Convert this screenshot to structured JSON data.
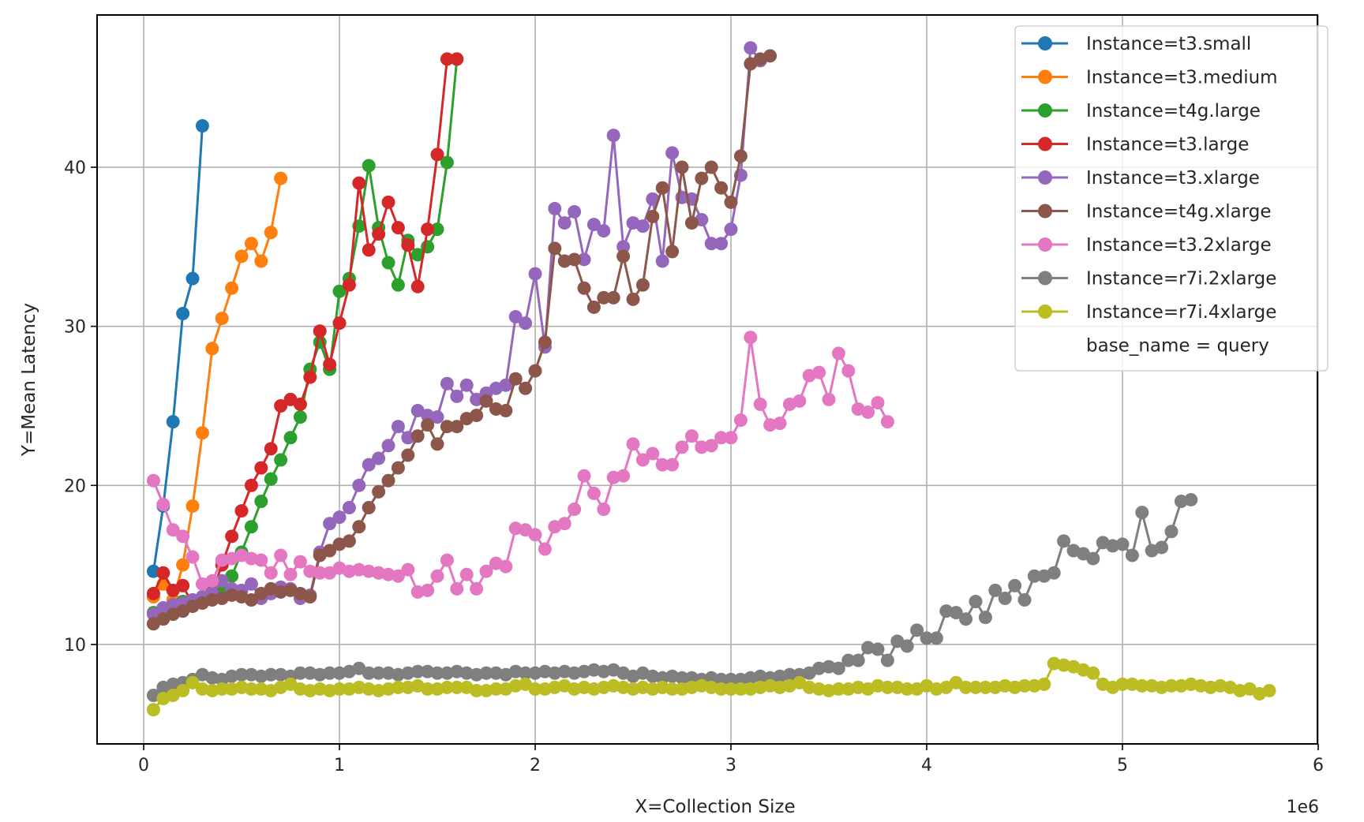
{
  "figure": {
    "xlabel": "X=Collection Size",
    "ylabel": "Y=Mean Latency",
    "x_offset_text": "1e6",
    "legend_title_row": "base_name = query"
  },
  "chart_data": {
    "type": "line",
    "title": "",
    "xlabel": "X=Collection Size",
    "ylabel": "Y=Mean Latency",
    "x_scale_note": "x values in units of 1e6",
    "xlim": [
      -0.238,
      5.996
    ],
    "ylim": [
      3.75,
      49.57
    ],
    "xticks": [
      0,
      1,
      2,
      3,
      4,
      5,
      6
    ],
    "xtick_labels": [
      "0",
      "1",
      "2",
      "3",
      "4",
      "5",
      "6"
    ],
    "yticks": [
      10,
      20,
      30,
      40
    ],
    "ytick_labels": [
      "10",
      "20",
      "30",
      "40"
    ],
    "grid": true,
    "legend_position": "upper right",
    "legend_extra": "base_name = query",
    "series": [
      {
        "name": "Instance=t3.small",
        "color": "#1f77b4",
        "x0": 0.05,
        "dx": 0.05,
        "values": [
          14.6,
          18.7,
          24.0,
          30.8,
          33.0,
          42.6
        ]
      },
      {
        "name": "Instance=t3.medium",
        "color": "#ff7f0e",
        "x0": 0.05,
        "dx": 0.05,
        "values": [
          13.0,
          13.8,
          12.8,
          15.0,
          18.7,
          23.3,
          28.6,
          30.5,
          32.4,
          34.4,
          35.2,
          34.1,
          35.9,
          39.3
        ]
      },
      {
        "name": "Instance=t4g.large",
        "color": "#2ca02c",
        "x0": 0.05,
        "dx": 0.05,
        "values": [
          12.0,
          12.3,
          12.5,
          12.7,
          12.8,
          13.0,
          13.3,
          13.5,
          14.3,
          15.8,
          17.4,
          19.0,
          20.4,
          21.6,
          23.0,
          24.3,
          27.3,
          29.0,
          27.3,
          32.2,
          33.0,
          36.3,
          40.1,
          36.2,
          34.0,
          32.6,
          35.4,
          34.5,
          35.0,
          36.1,
          40.3,
          46.8
        ]
      },
      {
        "name": "Instance=t3.large",
        "color": "#d62728",
        "x0": 0.05,
        "dx": 0.05,
        "values": [
          13.2,
          14.5,
          13.4,
          13.7,
          12.5,
          12.8,
          13.3,
          15.0,
          16.8,
          18.4,
          20.0,
          21.1,
          22.3,
          25.0,
          25.4,
          25.1,
          26.8,
          29.7,
          27.6,
          30.2,
          32.6,
          39.0,
          34.8,
          35.8,
          37.8,
          36.2,
          35.1,
          32.5,
          36.1,
          40.8,
          46.8,
          46.8
        ]
      },
      {
        "name": "Instance=t3.xlarge",
        "color": "#9467bd",
        "x0": 0.05,
        "dx": 0.05,
        "values": [
          11.9,
          12.3,
          12.5,
          12.6,
          12.8,
          13.0,
          13.2,
          14.0,
          13.5,
          13.4,
          13.8,
          12.9,
          13.2,
          13.6,
          13.5,
          12.9,
          13.1,
          15.8,
          17.6,
          18.0,
          18.6,
          20.0,
          21.3,
          21.7,
          22.5,
          23.7,
          23.0,
          24.7,
          24.4,
          24.3,
          26.4,
          25.6,
          26.3,
          25.4,
          25.8,
          26.1,
          26.3,
          30.6,
          30.2,
          33.3,
          28.7,
          37.4,
          36.5,
          37.2,
          34.2,
          36.4,
          36.0,
          42.0,
          35.0,
          36.5,
          36.3,
          38.0,
          34.1,
          40.9,
          38.1,
          38.0,
          36.7,
          35.2,
          35.2,
          36.1,
          39.5,
          47.5,
          46.7
        ]
      },
      {
        "name": "Instance=t4g.xlarge",
        "color": "#8c564b",
        "x0": 0.05,
        "dx": 0.05,
        "values": [
          11.3,
          11.6,
          11.9,
          12.1,
          12.4,
          12.6,
          12.8,
          12.9,
          13.1,
          13.0,
          12.8,
          13.2,
          13.5,
          13.3,
          13.4,
          13.2,
          13.0,
          15.6,
          15.9,
          16.3,
          16.5,
          17.4,
          18.6,
          19.6,
          20.3,
          21.1,
          21.9,
          23.1,
          23.8,
          22.6,
          23.7,
          23.7,
          24.2,
          24.4,
          25.3,
          24.8,
          24.7,
          26.7,
          26.1,
          27.2,
          29.0,
          34.9,
          34.1,
          34.2,
          32.4,
          31.2,
          31.8,
          31.8,
          34.4,
          31.7,
          32.6,
          36.9,
          38.7,
          34.7,
          40.0,
          36.5,
          39.3,
          40.0,
          38.7,
          37.8,
          40.7,
          46.5,
          46.8,
          47.0
        ]
      },
      {
        "name": "Instance=t3.2xlarge",
        "color": "#e377c2",
        "x0": 0.05,
        "dx": 0.05,
        "values": [
          20.3,
          18.8,
          17.2,
          16.8,
          15.5,
          13.8,
          14.0,
          15.3,
          15.4,
          15.6,
          15.4,
          15.3,
          14.5,
          15.6,
          14.4,
          15.2,
          14.6,
          14.5,
          14.5,
          14.8,
          14.6,
          14.7,
          14.6,
          14.5,
          14.4,
          14.3,
          14.7,
          13.3,
          13.4,
          14.3,
          15.3,
          13.5,
          14.4,
          13.5,
          14.6,
          15.1,
          14.9,
          17.3,
          17.2,
          16.9,
          16.0,
          17.4,
          17.6,
          18.5,
          20.6,
          19.5,
          18.5,
          20.5,
          20.6,
          22.6,
          21.6,
          22.0,
          21.3,
          21.3,
          22.4,
          23.1,
          22.4,
          22.5,
          23.0,
          23.0,
          24.1,
          29.3,
          25.1,
          23.8,
          23.9,
          25.1,
          25.3,
          26.9,
          27.1,
          25.4,
          28.3,
          27.2,
          24.8,
          24.6,
          25.2,
          24.0
        ]
      },
      {
        "name": "Instance=r7i.2xlarge",
        "color": "#7f7f7f",
        "x0": 0.05,
        "dx": 0.05,
        "values": [
          6.8,
          7.3,
          7.5,
          7.6,
          7.8,
          8.1,
          7.9,
          7.8,
          8.0,
          8.1,
          8.1,
          8.0,
          8.1,
          8.1,
          8.0,
          8.2,
          8.2,
          8.1,
          8.2,
          8.2,
          8.3,
          8.5,
          8.2,
          8.2,
          8.2,
          8.1,
          8.2,
          8.3,
          8.3,
          8.2,
          8.2,
          8.3,
          8.2,
          8.1,
          8.2,
          8.2,
          8.1,
          8.3,
          8.2,
          8.2,
          8.3,
          8.2,
          8.3,
          8.2,
          8.3,
          8.4,
          8.3,
          8.4,
          8.2,
          8.0,
          8.2,
          8.0,
          7.9,
          8.0,
          7.9,
          7.9,
          7.8,
          7.9,
          7.8,
          7.8,
          7.8,
          7.9,
          8.0,
          7.9,
          8.0,
          8.1,
          8.1,
          8.2,
          8.5,
          8.6,
          8.5,
          9.0,
          9.0,
          9.8,
          9.7,
          9.0,
          10.2,
          9.9,
          10.9,
          10.4,
          10.4,
          12.1,
          12.0,
          11.6,
          12.7,
          11.7,
          13.4,
          12.9,
          13.7,
          12.8,
          14.3,
          14.3,
          14.5,
          16.5,
          15.9,
          15.7,
          15.4,
          16.4,
          16.2,
          16.3,
          15.6,
          18.3,
          15.9,
          16.1,
          17.1,
          19.0,
          19.1
        ]
      },
      {
        "name": "Instance=r7i.4xlarge",
        "color": "#bcbd22",
        "x0": 0.05,
        "dx": 0.05,
        "values": [
          5.9,
          6.6,
          6.8,
          7.1,
          7.6,
          7.2,
          7.1,
          7.2,
          7.2,
          7.3,
          7.2,
          7.2,
          7.1,
          7.3,
          7.5,
          7.2,
          7.1,
          7.2,
          7.1,
          7.2,
          7.2,
          7.3,
          7.2,
          7.1,
          7.2,
          7.3,
          7.3,
          7.4,
          7.2,
          7.2,
          7.3,
          7.3,
          7.3,
          7.1,
          7.1,
          7.2,
          7.2,
          7.4,
          7.5,
          7.2,
          7.2,
          7.3,
          7.4,
          7.2,
          7.3,
          7.2,
          7.3,
          7.4,
          7.3,
          7.2,
          7.3,
          7.2,
          7.3,
          7.2,
          7.2,
          7.3,
          7.4,
          7.3,
          7.2,
          7.2,
          7.2,
          7.2,
          7.3,
          7.4,
          7.3,
          7.4,
          7.6,
          7.3,
          7.2,
          7.1,
          7.2,
          7.2,
          7.3,
          7.2,
          7.4,
          7.3,
          7.3,
          7.2,
          7.2,
          7.4,
          7.2,
          7.3,
          7.6,
          7.3,
          7.3,
          7.3,
          7.3,
          7.4,
          7.3,
          7.4,
          7.4,
          7.5,
          8.8,
          8.7,
          8.6,
          8.4,
          8.2,
          7.5,
          7.3,
          7.5,
          7.5,
          7.4,
          7.4,
          7.3,
          7.4,
          7.4,
          7.5,
          7.4,
          7.3,
          7.4,
          7.3,
          7.1,
          7.2,
          6.9,
          7.1
        ]
      }
    ]
  }
}
